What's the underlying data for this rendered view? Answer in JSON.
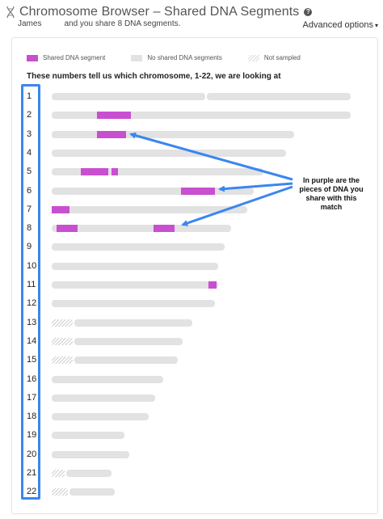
{
  "header": {
    "title": "Chromosome Browser – Shared DNA Segments",
    "match_name": "James",
    "share_text": "and you share 8 DNA segments.",
    "advanced_options": "Advanced options"
  },
  "legend": {
    "shared": "Shared DNA segment",
    "none": "No shared DNA segments",
    "not_sampled": "Not sampled"
  },
  "heading": "These numbers tell us which chromosome, 1-22, we are looking at",
  "annotation": "In purple are the pieces of DNA you share with this match",
  "colors": {
    "shared": "#c84fd0",
    "none": "#e2e2e2",
    "highlight": "#3a86f0"
  },
  "chromosomes": [
    {
      "label": "1"
    },
    {
      "label": "2"
    },
    {
      "label": "3"
    },
    {
      "label": "4"
    },
    {
      "label": "5"
    },
    {
      "label": "6"
    },
    {
      "label": "7"
    },
    {
      "label": "8"
    },
    {
      "label": "9"
    },
    {
      "label": "10"
    },
    {
      "label": "11"
    },
    {
      "label": "12"
    },
    {
      "label": "13"
    },
    {
      "label": "14"
    },
    {
      "label": "15"
    },
    {
      "label": "16"
    },
    {
      "label": "17"
    },
    {
      "label": "18"
    },
    {
      "label": "19"
    },
    {
      "label": "20"
    },
    {
      "label": "21"
    },
    {
      "label": "22"
    }
  ]
}
